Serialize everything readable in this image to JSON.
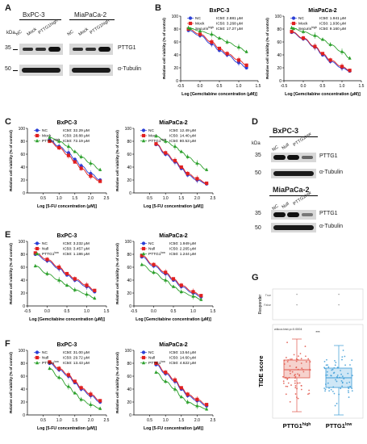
{
  "panels": {
    "A": {
      "letter": "A",
      "kda_label": "kDa",
      "lanes_1": [
        "NC",
        "Mock",
        "PTTG1high"
      ],
      "lanes_2": [
        "NC",
        "Mock",
        "PTTG1high"
      ],
      "cell_1": "BxPC-3",
      "cell_2": "MiaPaCa-2",
      "marker_1": "35",
      "marker_2": "50",
      "label_1": "PTTG1",
      "label_2": "α-Tubulin"
    },
    "D": {
      "letter": "D",
      "kda_label": "kDa",
      "cell_1": "BxPC-3",
      "cell_2": "MiaPaCa-2",
      "lanes_1": [
        "NC",
        "Null",
        "PTTG1low"
      ],
      "lanes_2": [
        "NC",
        "Null",
        "PTTG1low"
      ],
      "marker_1": "35",
      "marker_2": "50",
      "label_1": "PTTG1",
      "label_2": "α-Tubulin"
    },
    "G": {
      "letter": "G",
      "ylabel": "TIDE score",
      "facet_label": "Responder",
      "facet_ticks": [
        "True",
        "False"
      ],
      "pvalue": "wilcox.test.p=0.0004",
      "sig": "***",
      "groups": [
        "PTTG1high",
        "PTTG1low"
      ]
    }
  },
  "chart_data": [
    {
      "id": "B1",
      "panel": "B",
      "type": "line",
      "title": "BxPC-3",
      "xlabel": "Log [Gemcitabine concentration (μM)]",
      "ylabel": "Relative cell viability (% of control)",
      "xlim": [
        -0.5,
        1.5
      ],
      "ylim": [
        0,
        100
      ],
      "xticks": [
        "-0.5",
        "0.0",
        "0.5",
        "1.0",
        "1.5"
      ],
      "yticks": [
        "0",
        "20",
        "40",
        "60",
        "80",
        "100"
      ],
      "legend": "top-right",
      "series": [
        {
          "name": "NC",
          "ic50": "IC50: 2.881 μM",
          "color": "#2b3fd6",
          "marker": "circle",
          "x": [
            -0.3,
            0,
            0.3,
            0.5,
            0.7,
            1.0,
            1.2
          ],
          "y": [
            78,
            70,
            57,
            47,
            40,
            28,
            20
          ]
        },
        {
          "name": "Mock",
          "ic50": "IC50: 3.268 μM",
          "color": "#e02020",
          "marker": "square",
          "x": [
            -0.3,
            0,
            0.3,
            0.5,
            0.7,
            1.0,
            1.2
          ],
          "y": [
            80,
            72,
            60,
            50,
            42,
            32,
            24
          ]
        },
        {
          "name": "Securinhigh",
          "ic50": "IC50: 17.27 μM",
          "color": "#2ca02c",
          "marker": "triangle",
          "x": [
            -0.3,
            0,
            0.3,
            0.5,
            0.7,
            1.0,
            1.2
          ],
          "y": [
            82,
            77,
            72,
            66,
            60,
            52,
            45
          ]
        }
      ]
    },
    {
      "id": "B2",
      "panel": "B",
      "type": "line",
      "title": "MiaPaCa-2",
      "xlabel": "Log [Gemcitabine concentration (μM)]",
      "ylabel": "Relative cell viability (% of control)",
      "xlim": [
        -0.5,
        1.5
      ],
      "ylim": [
        0,
        100
      ],
      "xticks": [
        "-0.5",
        "0.0",
        "0.5",
        "1.0",
        "1.5"
      ],
      "yticks": [
        "0",
        "20",
        "40",
        "60",
        "80",
        "100"
      ],
      "legend": "top-right",
      "series": [
        {
          "name": "NC",
          "ic50": "IC50: 1.941 μM",
          "color": "#2b3fd6",
          "marker": "circle",
          "x": [
            -0.3,
            0,
            0.3,
            0.5,
            0.7,
            1.0,
            1.2
          ],
          "y": [
            75,
            65,
            52,
            40,
            30,
            20,
            15
          ]
        },
        {
          "name": "Mock",
          "ic50": "IC50: 1.936 μM",
          "color": "#e02020",
          "marker": "square",
          "x": [
            -0.3,
            0,
            0.3,
            0.5,
            0.7,
            1.0,
            1.2
          ],
          "y": [
            76,
            66,
            53,
            42,
            32,
            22,
            16
          ]
        },
        {
          "name": "Securinhigh",
          "ic50": "IC50: 9.160 μM",
          "color": "#2ca02c",
          "marker": "triangle",
          "x": [
            -0.3,
            0,
            0.3,
            0.5,
            0.7,
            1.0,
            1.2
          ],
          "y": [
            82,
            76,
            70,
            64,
            56,
            45,
            35
          ]
        }
      ]
    },
    {
      "id": "C1",
      "panel": "C",
      "type": "line",
      "title": "BxPC-3",
      "xlabel": "Log [5-FU concentration (μM)]",
      "ylabel": "Relative cell viability (% of control)",
      "xlim": [
        0,
        2.5
      ],
      "ylim": [
        0,
        100
      ],
      "xticks": [
        "0.5",
        "1.0",
        "1.5",
        "2.0",
        "2.5"
      ],
      "yticks": [
        "0",
        "20",
        "40",
        "60",
        "80",
        "100"
      ],
      "legend": "top-right",
      "series": [
        {
          "name": "NC",
          "ic50": "IC50: 32.29 μM",
          "color": "#2b3fd6",
          "marker": "circle",
          "x": [
            0.7,
            1.0,
            1.3,
            1.5,
            1.7,
            2.0,
            2.3
          ],
          "y": [
            82,
            72,
            62,
            52,
            42,
            30,
            20
          ]
        },
        {
          "name": "Mock",
          "ic50": "IC50: 28.88 μM",
          "color": "#e02020",
          "marker": "square",
          "x": [
            0.7,
            1.0,
            1.3,
            1.5,
            1.7,
            2.0,
            2.3
          ],
          "y": [
            80,
            70,
            58,
            48,
            38,
            26,
            18
          ]
        },
        {
          "name": "PTTG1high",
          "ic50": "IC50: 72.19 μM",
          "color": "#2ca02c",
          "marker": "triangle",
          "x": [
            0.7,
            1.0,
            1.3,
            1.5,
            1.7,
            2.0,
            2.3
          ],
          "y": [
            86,
            80,
            72,
            64,
            56,
            46,
            36
          ]
        }
      ]
    },
    {
      "id": "C2",
      "panel": "C",
      "type": "line",
      "title": "MiaPaCa-2",
      "xlabel": "Log [5-FU concentration (μM)]",
      "ylabel": "Relative cell viability (% of control)",
      "xlim": [
        0,
        2.5
      ],
      "ylim": [
        0,
        100
      ],
      "xticks": [
        "0.5",
        "1.0",
        "1.5",
        "2.0",
        "2.5"
      ],
      "yticks": [
        "0",
        "20",
        "40",
        "60",
        "80",
        "100"
      ],
      "legend": "top-right",
      "series": [
        {
          "name": "NC",
          "ic50": "IC50: 12.49 μM",
          "color": "#2b3fd6",
          "marker": "circle",
          "x": [
            0.7,
            1.0,
            1.3,
            1.5,
            1.7,
            2.0,
            2.3
          ],
          "y": [
            75,
            60,
            48,
            38,
            28,
            20,
            14
          ]
        },
        {
          "name": "Mock",
          "ic50": "IC50: 14.40 μM",
          "color": "#e02020",
          "marker": "square",
          "x": [
            0.7,
            1.0,
            1.3,
            1.5,
            1.7,
            2.0,
            2.3
          ],
          "y": [
            76,
            62,
            50,
            40,
            30,
            22,
            15
          ]
        },
        {
          "name": "PTTG1high",
          "ic50": "IC50: 80.53 μM",
          "color": "#2ca02c",
          "marker": "triangle",
          "x": [
            0.7,
            1.0,
            1.3,
            1.5,
            1.7,
            2.0,
            2.3
          ],
          "y": [
            88,
            80,
            72,
            64,
            56,
            46,
            36
          ]
        }
      ]
    },
    {
      "id": "E1",
      "panel": "E",
      "type": "line",
      "title": "BxPC-3",
      "xlabel": "Log [Gemcitabine concentration (μM)]",
      "ylabel": "Relative cell viability (% of control)",
      "xlim": [
        -0.5,
        1.5
      ],
      "ylim": [
        0,
        100
      ],
      "xticks": [
        "-0.5",
        "0.0",
        "0.5",
        "1.0",
        "1.5"
      ],
      "yticks": [
        "0",
        "20",
        "40",
        "60",
        "80",
        "100"
      ],
      "legend": "top-right",
      "series": [
        {
          "name": "NC",
          "ic50": "IC50: 3.232 μM",
          "color": "#2b3fd6",
          "marker": "circle",
          "x": [
            -0.3,
            0,
            0.3,
            0.5,
            0.7,
            1.0,
            1.2
          ],
          "y": [
            80,
            70,
            58,
            48,
            40,
            30,
            22
          ]
        },
        {
          "name": "Null",
          "ic50": "IC50: 3.457 μM",
          "color": "#e02020",
          "marker": "square",
          "x": [
            -0.3,
            0,
            0.3,
            0.5,
            0.7,
            1.0,
            1.2
          ],
          "y": [
            82,
            72,
            60,
            50,
            42,
            32,
            24
          ]
        },
        {
          "name": "PTTG1low",
          "ic50": "IC50: 1.186 μM",
          "color": "#2ca02c",
          "marker": "triangle",
          "x": [
            -0.3,
            0,
            0.3,
            0.5,
            0.7,
            1.0,
            1.2
          ],
          "y": [
            62,
            50,
            40,
            32,
            25,
            18,
            12
          ]
        }
      ]
    },
    {
      "id": "E2",
      "panel": "E",
      "type": "line",
      "title": "MiaPaCa-2",
      "xlabel": "Log [Gemcitabine concentration (μM)]",
      "ylabel": "Relative cell viability (% of control)",
      "xlim": [
        -0.5,
        1.5
      ],
      "ylim": [
        0,
        100
      ],
      "xticks": [
        "-0.5",
        "0.0",
        "0.5",
        "1.0",
        "1.5"
      ],
      "yticks": [
        "0",
        "20",
        "40",
        "60",
        "80",
        "100"
      ],
      "legend": "top-right",
      "series": [
        {
          "name": "NC",
          "ic50": "IC50: 1.949 μM",
          "color": "#2b3fd6",
          "marker": "circle",
          "x": [
            -0.3,
            0,
            0.3,
            0.5,
            0.7,
            1.0,
            1.2
          ],
          "y": [
            76,
            62,
            50,
            40,
            30,
            20,
            14
          ]
        },
        {
          "name": "Null",
          "ic50": "IC50: 2.265 μM",
          "color": "#e02020",
          "marker": "square",
          "x": [
            -0.3,
            0,
            0.3,
            0.5,
            0.7,
            1.0,
            1.2
          ],
          "y": [
            78,
            64,
            52,
            42,
            32,
            22,
            16
          ]
        },
        {
          "name": "PTTG1low",
          "ic50": "IC50: 1.244 μM",
          "color": "#2ca02c",
          "marker": "triangle",
          "x": [
            -0.3,
            0,
            0.3,
            0.5,
            0.7,
            1.0,
            1.2
          ],
          "y": [
            64,
            52,
            40,
            30,
            22,
            15,
            10
          ]
        }
      ]
    },
    {
      "id": "F1",
      "panel": "F",
      "type": "line",
      "title": "BxPC-3",
      "xlabel": "Log [5-FU concentration (μM)]",
      "ylabel": "Relative cell viability (% of control)",
      "xlim": [
        0,
        2.5
      ],
      "ylim": [
        0,
        100
      ],
      "xticks": [
        "0.5",
        "1.0",
        "1.5",
        "2.0",
        "2.5"
      ],
      "yticks": [
        "0",
        "20",
        "40",
        "60",
        "80",
        "100"
      ],
      "legend": "top-right",
      "series": [
        {
          "name": "NC",
          "ic50": "IC50: 31.00 μM",
          "color": "#2b3fd6",
          "marker": "circle",
          "x": [
            0.7,
            1.0,
            1.3,
            1.5,
            1.7,
            2.0,
            2.3
          ],
          "y": [
            80,
            70,
            60,
            50,
            40,
            30,
            20
          ]
        },
        {
          "name": "Null",
          "ic50": "IC50: 29.72 μM",
          "color": "#e02020",
          "marker": "square",
          "x": [
            0.7,
            1.0,
            1.3,
            1.5,
            1.7,
            2.0,
            2.3
          ],
          "y": [
            82,
            72,
            62,
            52,
            42,
            32,
            22
          ]
        },
        {
          "name": "PTTG1low",
          "ic50": "IC50: 13.43 μM",
          "color": "#2ca02c",
          "marker": "triangle",
          "x": [
            0.7,
            1.0,
            1.3,
            1.5,
            1.7,
            2.0,
            2.3
          ],
          "y": [
            72,
            58,
            44,
            34,
            24,
            16,
            10
          ]
        }
      ]
    },
    {
      "id": "F2",
      "panel": "F",
      "type": "line",
      "title": "MiaPaCa-2",
      "xlabel": "Log [5-FU concentration (μM)]",
      "ylabel": "Relative cell viability (% of control)",
      "xlim": [
        0,
        2.5
      ],
      "ylim": [
        0,
        100
      ],
      "xticks": [
        "0.5",
        "1.0",
        "1.5",
        "2.0",
        "2.5"
      ],
      "yticks": [
        "0",
        "20",
        "40",
        "60",
        "80",
        "100"
      ],
      "legend": "top-right",
      "series": [
        {
          "name": "NC",
          "ic50": "IC50: 13.64 μM",
          "color": "#2b3fd6",
          "marker": "circle",
          "x": [
            0.7,
            1.0,
            1.3,
            1.5,
            1.7,
            2.0,
            2.3
          ],
          "y": [
            78,
            64,
            52,
            40,
            30,
            22,
            14
          ]
        },
        {
          "name": "Null",
          "ic50": "IC50: 14.60 μM",
          "color": "#e02020",
          "marker": "square",
          "x": [
            0.7,
            1.0,
            1.3,
            1.5,
            1.7,
            2.0,
            2.3
          ],
          "y": [
            80,
            66,
            54,
            42,
            32,
            24,
            16
          ]
        },
        {
          "name": "PTTG1low",
          "ic50": "IC50: 4.622 μM",
          "color": "#2ca02c",
          "marker": "triangle",
          "x": [
            0.7,
            1.0,
            1.3,
            1.5,
            1.7,
            2.0,
            2.3
          ],
          "y": [
            66,
            52,
            40,
            28,
            20,
            14,
            9
          ]
        }
      ]
    }
  ]
}
